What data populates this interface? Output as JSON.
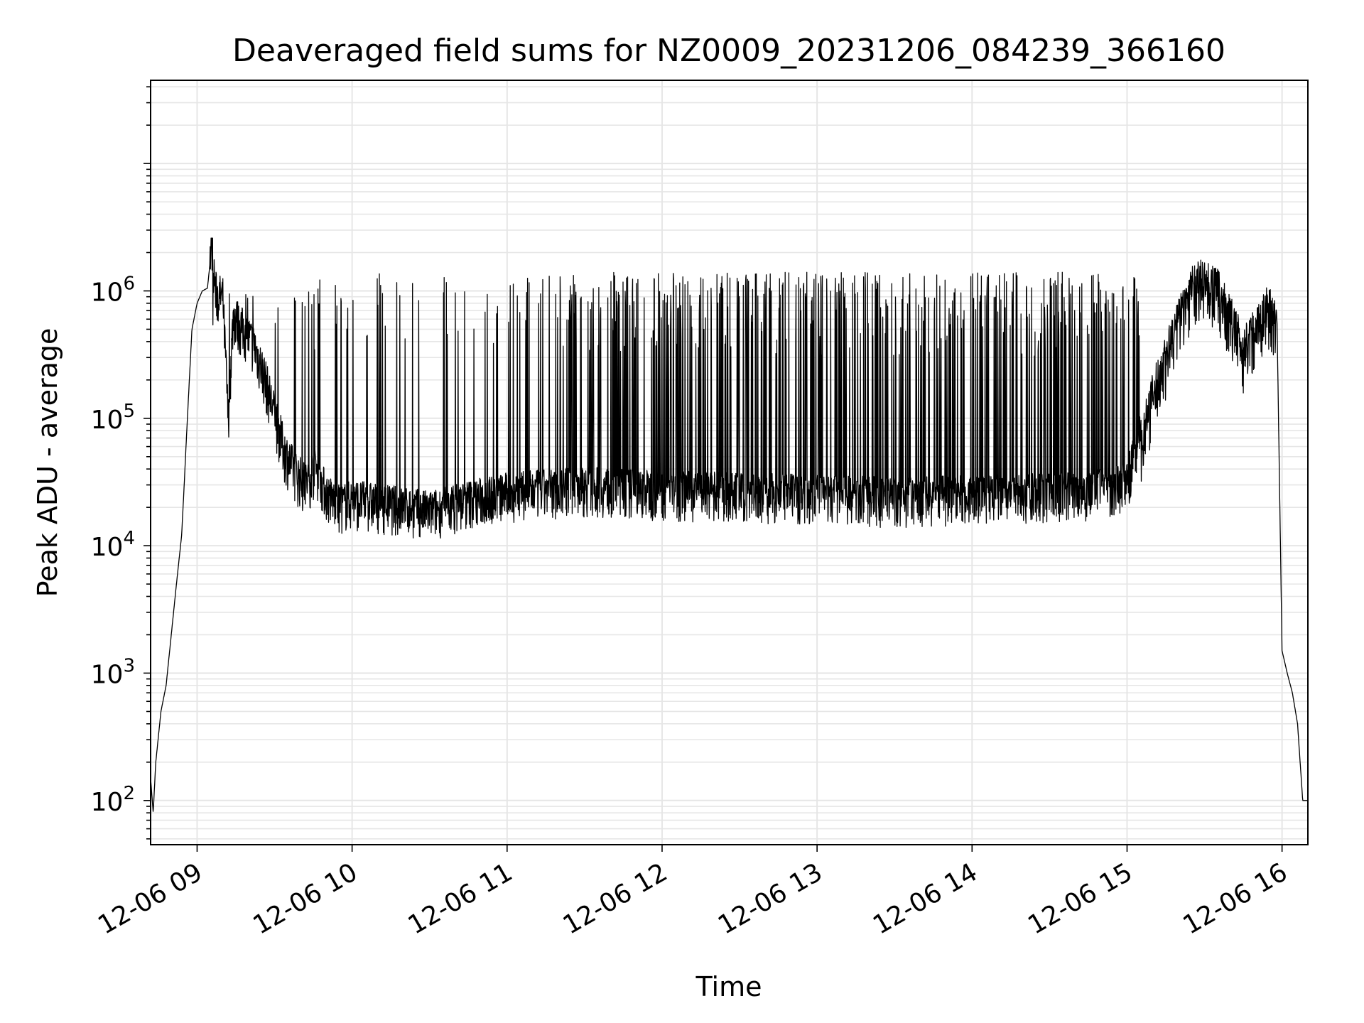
{
  "chart_data": {
    "type": "line",
    "title": "Deaveraged field sums for NZ0009_20231206_084239_366160",
    "xlabel": "Time",
    "ylabel": "Peak ADU - average",
    "y_scale": "log",
    "ylim": [
      45,
      45000000
    ],
    "xlim": [
      "2023-12-06 08:42",
      "2023-12-06 16:10"
    ],
    "grid": true,
    "line_color": "#000000",
    "grid_color": "#e6e6e6",
    "x_ticks": [
      {
        "t": "2023-12-06 09:00",
        "label": "12-06 09"
      },
      {
        "t": "2023-12-06 10:00",
        "label": "12-06 10"
      },
      {
        "t": "2023-12-06 11:00",
        "label": "12-06 11"
      },
      {
        "t": "2023-12-06 12:00",
        "label": "12-06 12"
      },
      {
        "t": "2023-12-06 13:00",
        "label": "12-06 13"
      },
      {
        "t": "2023-12-06 14:00",
        "label": "12-06 14"
      },
      {
        "t": "2023-12-06 15:00",
        "label": "12-06 15"
      },
      {
        "t": "2023-12-06 16:00",
        "label": "12-06 16"
      }
    ],
    "y_ticks": [
      {
        "value": 100,
        "base": "10",
        "exp": "2"
      },
      {
        "value": 1000,
        "base": "10",
        "exp": "3"
      },
      {
        "value": 10000,
        "base": "10",
        "exp": "4"
      },
      {
        "value": 100000,
        "base": "10",
        "exp": "5"
      },
      {
        "value": 1000000,
        "base": "10",
        "exp": "6"
      }
    ],
    "series": [
      {
        "name": "",
        "points": [
          [
            "2023-12-06 08:42",
            150
          ],
          [
            "2023-12-06 08:43",
            80
          ],
          [
            "2023-12-06 08:44",
            200
          ],
          [
            "2023-12-06 08:46",
            500
          ],
          [
            "2023-12-06 08:48",
            800
          ],
          [
            "2023-12-06 08:50",
            2000
          ],
          [
            "2023-12-06 08:52",
            5000
          ],
          [
            "2023-12-06 08:54",
            12000
          ],
          [
            "2023-12-06 08:55",
            30000
          ],
          [
            "2023-12-06 08:56",
            80000
          ],
          [
            "2023-12-06 08:57",
            200000
          ],
          [
            "2023-12-06 08:58",
            500000
          ],
          [
            "2023-12-06 09:00",
            800000
          ],
          [
            "2023-12-06 09:02",
            1000000
          ],
          [
            "2023-12-06 09:04",
            1050000
          ],
          [
            "2023-12-06 09:06",
            2600000
          ],
          [
            "2023-12-06 09:07",
            900000
          ],
          [
            "2023-12-06 09:10",
            800000
          ],
          [
            "2023-12-06 09:12",
            95000
          ],
          [
            "2023-12-06 09:14",
            600000
          ],
          [
            "2023-12-06 09:18",
            450000
          ],
          [
            "2023-12-06 09:22",
            350000
          ],
          [
            "2023-12-06 09:26",
            200000
          ],
          [
            "2023-12-06 09:30",
            100000
          ],
          [
            "2023-12-06 09:34",
            50000
          ],
          [
            "2023-12-06 09:38",
            35000
          ],
          [
            "2023-12-06 09:42",
            28000
          ],
          [
            "2023-12-06 09:46",
            40000
          ],
          [
            "2023-12-06 09:50",
            25000
          ],
          [
            "2023-12-06 09:55",
            20000
          ],
          [
            "2023-12-06 10:00",
            22000
          ],
          [
            "2023-12-06 10:15",
            20000
          ],
          [
            "2023-12-06 10:30",
            18000
          ],
          [
            "2023-12-06 10:45",
            22000
          ],
          [
            "2023-12-06 11:00",
            25000
          ],
          [
            "2023-12-06 11:30",
            28000
          ],
          [
            "2023-12-06 12:00",
            26000
          ],
          [
            "2023-12-06 12:30",
            25000
          ],
          [
            "2023-12-06 13:00",
            24000
          ],
          [
            "2023-12-06 13:30",
            23000
          ],
          [
            "2023-12-06 14:00",
            24000
          ],
          [
            "2023-12-06 14:30",
            25000
          ],
          [
            "2023-12-06 14:45",
            26000
          ],
          [
            "2023-12-06 15:00",
            30000
          ],
          [
            "2023-12-06 15:05",
            80000
          ],
          [
            "2023-12-06 15:10",
            200000
          ],
          [
            "2023-12-06 15:15",
            400000
          ],
          [
            "2023-12-06 15:20",
            800000
          ],
          [
            "2023-12-06 15:25",
            1400000
          ],
          [
            "2023-12-06 15:30",
            1600000
          ],
          [
            "2023-12-06 15:35",
            1300000
          ],
          [
            "2023-12-06 15:40",
            800000
          ],
          [
            "2023-12-06 15:45",
            450000
          ],
          [
            "2023-12-06 15:50",
            700000
          ],
          [
            "2023-12-06 15:55",
            1000000
          ],
          [
            "2023-12-06 15:58",
            700000
          ],
          [
            "2023-12-06 16:00",
            1500
          ],
          [
            "2023-12-06 16:02",
            1000
          ],
          [
            "2023-12-06 16:04",
            700
          ],
          [
            "2023-12-06 16:06",
            400
          ],
          [
            "2023-12-06 16:08",
            100
          ]
        ]
      }
    ]
  }
}
